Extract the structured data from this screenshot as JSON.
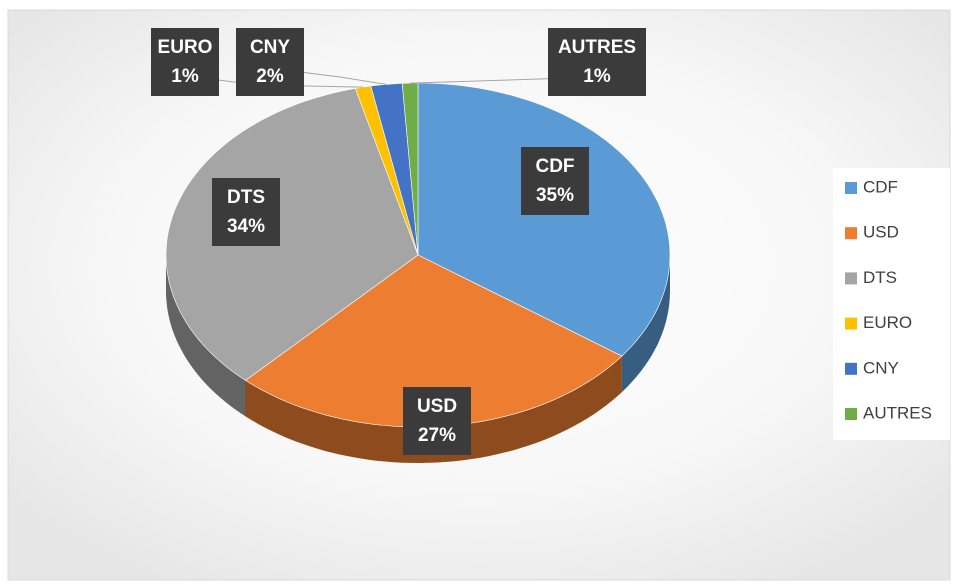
{
  "chart_data": {
    "type": "pie",
    "categories": [
      "CDF",
      "USD",
      "DTS",
      "EURO",
      "CNY",
      "AUTRES"
    ],
    "values": [
      35,
      27,
      34,
      1,
      2,
      1
    ],
    "value_labels": [
      "35%",
      "27%",
      "34%",
      "1%",
      "2%",
      "1%"
    ],
    "colors": [
      "#5b9bd5",
      "#ed7d31",
      "#a5a5a5",
      "#ffc000",
      "#4472c4",
      "#70ad47"
    ],
    "legend": "right"
  }
}
